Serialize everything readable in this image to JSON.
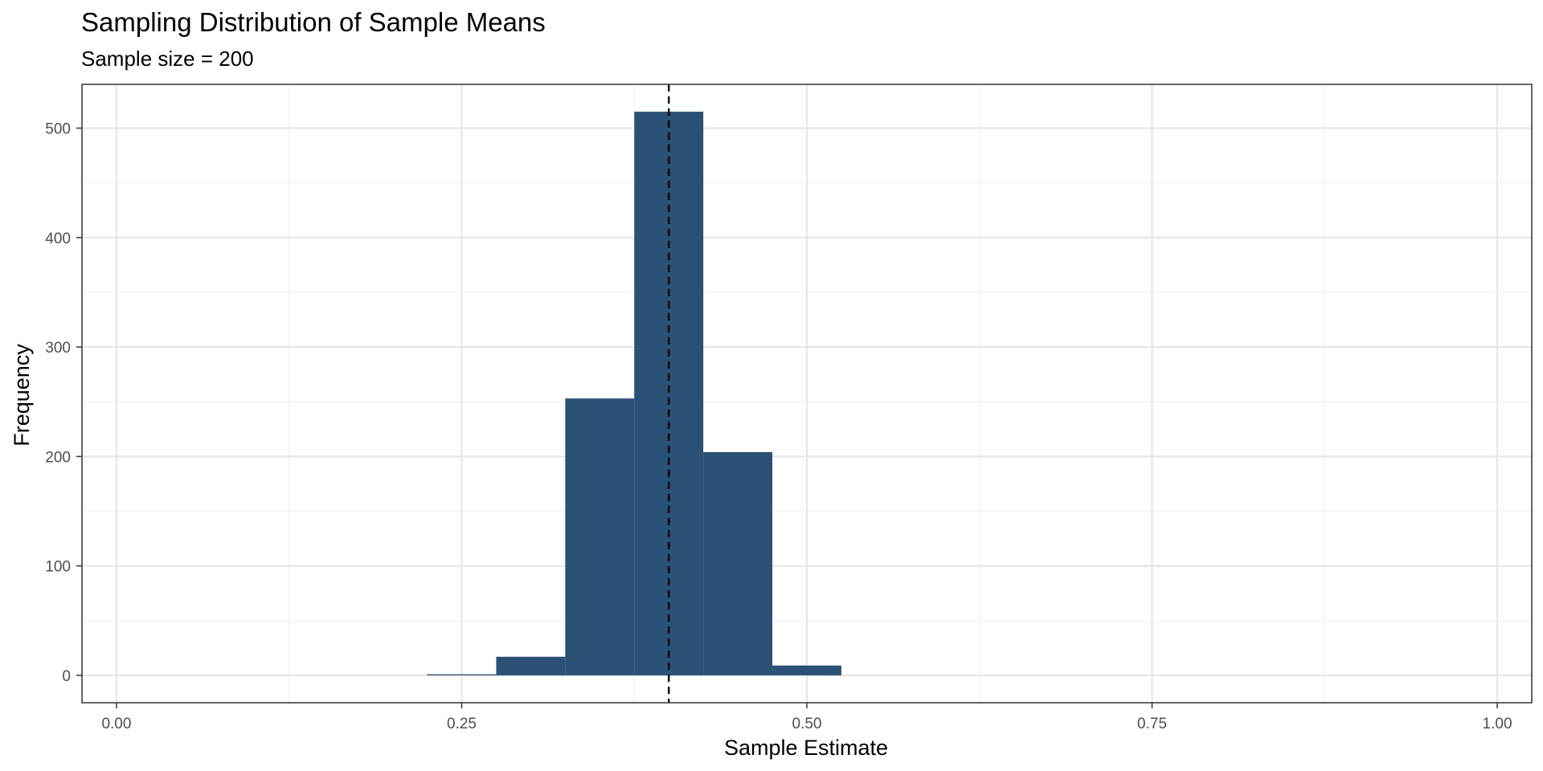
{
  "chart_data": {
    "type": "histogram",
    "title": "Sampling Distribution of Sample Means",
    "subtitle": "Sample size = 200",
    "xlabel": "Sample Estimate",
    "ylabel": "Frequency",
    "xlim": [
      -0.025,
      1.025
    ],
    "ylim": [
      -25,
      540
    ],
    "x_ticks": [
      0.0,
      0.25,
      0.5,
      0.75,
      1.0
    ],
    "x_tick_labels": [
      "0.00",
      "0.25",
      "0.50",
      "0.75",
      "1.00"
    ],
    "y_ticks": [
      0,
      100,
      200,
      300,
      400,
      500
    ],
    "y_tick_labels": [
      "0",
      "100",
      "200",
      "300",
      "400",
      "500"
    ],
    "bin_width": 0.05,
    "bins": [
      {
        "x_start": 0.225,
        "x_end": 0.275,
        "count": 1
      },
      {
        "x_start": 0.275,
        "x_end": 0.325,
        "count": 17
      },
      {
        "x_start": 0.325,
        "x_end": 0.375,
        "count": 253
      },
      {
        "x_start": 0.375,
        "x_end": 0.425,
        "count": 515
      },
      {
        "x_start": 0.425,
        "x_end": 0.475,
        "count": 204
      },
      {
        "x_start": 0.475,
        "x_end": 0.525,
        "count": 9
      }
    ],
    "reference_line": {
      "x": 0.4,
      "style": "dashed",
      "color": "#000000"
    },
    "bar_color": "#2c5176",
    "grid": true,
    "legend": "none"
  }
}
